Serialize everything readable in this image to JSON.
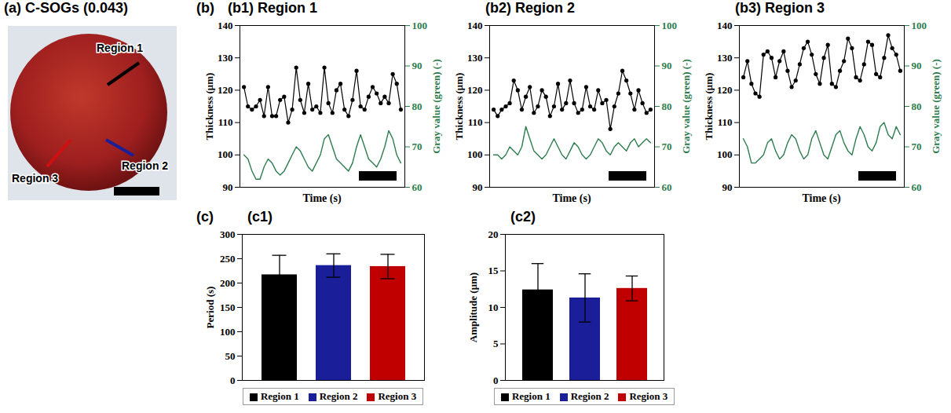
{
  "chart_data": [
    {
      "type": "image",
      "title": "(a) C-SOGs (0.043)",
      "annotations": [
        {
          "text": "Region 1",
          "color": "#000000"
        },
        {
          "text": "Region 2",
          "color": "#1a1f99"
        },
        {
          "text": "Region 3",
          "color": "#d01010"
        }
      ]
    },
    {
      "type": "line",
      "group_label": "(b)",
      "title": "(b1) Region 1",
      "xlabel": "Time (s)",
      "ylabel": "Thickness (μm)",
      "y2label": "Gray value (green) (-)",
      "x": [
        0,
        1,
        2,
        3,
        4,
        5,
        6,
        7,
        8,
        9,
        10,
        11,
        12,
        13,
        14,
        15,
        16,
        17,
        18,
        19,
        20,
        21,
        22,
        23,
        24,
        25,
        26,
        27,
        28,
        29,
        30,
        31,
        32,
        33,
        34,
        35,
        36,
        37,
        38,
        39
      ],
      "xlim": [
        -1,
        40
      ],
      "xticks": [],
      "ylim": [
        90,
        140
      ],
      "yticks": [
        90,
        100,
        110,
        120,
        130,
        140
      ],
      "y2lim": [
        60,
        100
      ],
      "y2ticks": [
        60,
        70,
        80,
        90,
        100
      ],
      "series": [
        {
          "color": "#000000",
          "marker": "circle",
          "values": [
            121,
            115,
            114,
            115,
            117,
            112,
            121,
            112,
            112,
            117,
            118,
            110,
            114,
            127,
            117,
            113,
            122,
            114,
            115,
            113,
            127,
            116,
            113,
            120,
            122,
            114,
            112,
            117,
            126,
            115,
            114,
            118,
            121,
            119,
            116,
            118,
            116,
            125,
            122,
            114
          ]
        },
        {
          "color": "#2e7d4f",
          "axis": "y2",
          "values": [
            68,
            67,
            64,
            62,
            62,
            65,
            67,
            66,
            64,
            63,
            64,
            66,
            68,
            70,
            69,
            67,
            65,
            64,
            66,
            68,
            72,
            73,
            70,
            67,
            66,
            65,
            64,
            66,
            70,
            73,
            70,
            67,
            66,
            65,
            67,
            70,
            74,
            72,
            68,
            66
          ]
        }
      ]
    },
    {
      "type": "line",
      "title": "(b2) Region 2",
      "xlabel": "Time (s)",
      "ylabel": "Thickness (μm)",
      "y2label": "Gray value (green) (-)",
      "x": [
        0,
        1,
        2,
        3,
        4,
        5,
        6,
        7,
        8,
        9,
        10,
        11,
        12,
        13,
        14,
        15,
        16,
        17,
        18,
        19,
        20,
        21,
        22,
        23,
        24,
        25,
        26,
        27,
        28,
        29,
        30,
        31,
        32,
        33,
        34,
        35,
        36,
        37,
        38,
        39
      ],
      "xlim": [
        -1,
        40
      ],
      "xticks": [],
      "ylim": [
        90,
        140
      ],
      "yticks": [
        90,
        100,
        110,
        120,
        130,
        140
      ],
      "y2lim": [
        60,
        100
      ],
      "y2ticks": [
        60,
        70,
        80,
        90,
        100
      ],
      "series": [
        {
          "color": "#000000",
          "marker": "circle",
          "values": [
            114,
            112,
            114,
            115,
            116,
            123,
            120,
            114,
            118,
            121,
            113,
            115,
            120,
            118,
            112,
            115,
            122,
            114,
            116,
            123,
            116,
            113,
            114,
            121,
            115,
            114,
            120,
            116,
            117,
            108,
            115,
            119,
            126,
            123,
            119,
            114,
            120,
            116,
            113,
            114
          ]
        },
        {
          "color": "#2e7d4f",
          "axis": "y2",
          "values": [
            68,
            68,
            67,
            68,
            70,
            69,
            68,
            70,
            75,
            72,
            69,
            68,
            67,
            68,
            70,
            72,
            70,
            68,
            67,
            69,
            71,
            70,
            68,
            67,
            68,
            70,
            72,
            71,
            69,
            68,
            70,
            71,
            70,
            69,
            71,
            72,
            70,
            71,
            72,
            71
          ]
        }
      ]
    },
    {
      "type": "line",
      "title": "(b3) Region 3",
      "xlabel": "Time (s)",
      "ylabel": "Thickness (μm)",
      "y2label": "Gray value (green) (-)",
      "x": [
        0,
        1,
        2,
        3,
        4,
        5,
        6,
        7,
        8,
        9,
        10,
        11,
        12,
        13,
        14,
        15,
        16,
        17,
        18,
        19,
        20,
        21,
        22,
        23,
        24,
        25,
        26,
        27,
        28,
        29,
        30,
        31,
        32,
        33,
        34,
        35,
        36,
        37,
        38,
        39
      ],
      "xlim": [
        -1,
        40
      ],
      "xticks": [],
      "ylim": [
        90,
        140
      ],
      "yticks": [
        90,
        100,
        110,
        120,
        130,
        140
      ],
      "y2lim": [
        60,
        100
      ],
      "y2ticks": [
        60,
        70,
        80,
        90,
        100
      ],
      "series": [
        {
          "color": "#000000",
          "marker": "circle",
          "values": [
            124,
            129,
            122,
            119,
            118,
            131,
            132,
            130,
            124,
            129,
            132,
            126,
            121,
            123,
            128,
            133,
            135,
            131,
            125,
            122,
            130,
            134,
            122,
            121,
            126,
            129,
            136,
            133,
            124,
            123,
            128,
            135,
            134,
            125,
            124,
            130,
            137,
            133,
            131,
            126
          ]
        },
        {
          "color": "#2e7d4f",
          "axis": "y2",
          "values": [
            72,
            70,
            66,
            66,
            67,
            68,
            71,
            72,
            69,
            67,
            68,
            71,
            73,
            72,
            69,
            67,
            68,
            72,
            74,
            71,
            68,
            67,
            70,
            73,
            74,
            71,
            69,
            68,
            72,
            75,
            73,
            70,
            69,
            71,
            75,
            76,
            73,
            72,
            75,
            73
          ]
        }
      ]
    },
    {
      "type": "bar",
      "group_label": "(c)",
      "title": "(c1)",
      "ylabel": "Period (s)",
      "categories": [
        "Region 1",
        "Region 2",
        "Region 3"
      ],
      "values": [
        217,
        236,
        234
      ],
      "errors": [
        40,
        24,
        25
      ],
      "colors": [
        "#000000",
        "#1a1f99",
        "#c00000"
      ],
      "ylim": [
        0,
        300
      ],
      "yticks": [
        0,
        50,
        100,
        150,
        200,
        250,
        300
      ],
      "legend": "bottom",
      "tick_labels": "y"
    },
    {
      "type": "bar",
      "title": "(c2)",
      "ylabel": "Amplitude (μm)",
      "categories": [
        "Region 1",
        "Region 2",
        "Region 3"
      ],
      "values": [
        12.4,
        11.3,
        12.6
      ],
      "errors": [
        3.6,
        3.3,
        1.7
      ],
      "colors": [
        "#000000",
        "#1a1f99",
        "#c00000"
      ],
      "ylim": [
        0,
        20
      ],
      "yticks": [
        0,
        5,
        10,
        15,
        20
      ],
      "legend": "bottom",
      "tick_labels": "y"
    }
  ]
}
